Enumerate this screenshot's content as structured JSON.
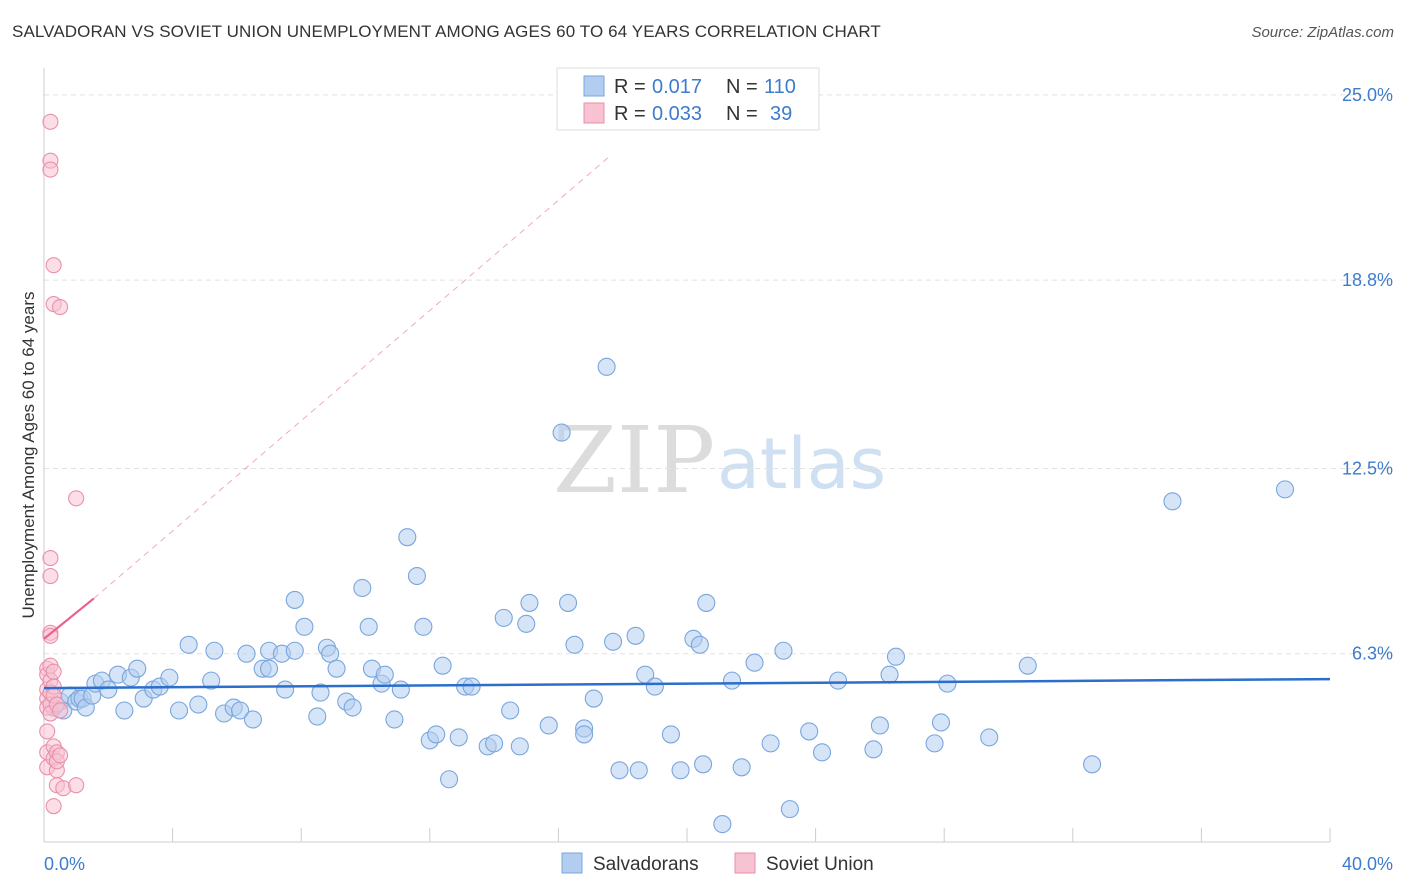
{
  "title": "SALVADORAN VS SOVIET UNION UNEMPLOYMENT AMONG AGES 60 TO 64 YEARS CORRELATION CHART",
  "source": "Source: ZipAtlas.com",
  "watermark": {
    "zip": "ZIP",
    "atlas": "atlas"
  },
  "colors": {
    "blue_fill": "#b3cdf0",
    "blue_stroke": "#7aa6dd",
    "blue_line": "#2b6fcb",
    "pink_fill": "#f7c2d2",
    "pink_stroke": "#ea8fac",
    "pink_line": "#e8628a",
    "grid": "#e2e2e2",
    "axis": "#cccccc",
    "tick_label": "#3d7ccc"
  },
  "legend": {
    "rows": [
      {
        "r_label": "R =",
        "r_value": "0.017",
        "n_label": "N =",
        "n_value": "110",
        "color": "blue"
      },
      {
        "r_label": "R =",
        "r_value": "0.033",
        "n_label": "N =",
        "n_value": "39",
        "color": "pink"
      }
    ]
  },
  "chart_data": {
    "type": "scatter",
    "title": "SALVADORAN VS SOVIET UNION UNEMPLOYMENT AMONG AGES 60 TO 64 YEARS CORRELATION CHART",
    "xlabel": "",
    "ylabel": "Unemployment Among Ages 60 to 64 years",
    "xlim": [
      0,
      40
    ],
    "ylim": [
      0,
      25.9
    ],
    "x_tick_labels": [
      {
        "value": 0,
        "label": "0.0%"
      },
      {
        "value": 40,
        "label": "40.0%"
      }
    ],
    "y_tick_labels": [
      {
        "value": 6.3,
        "label": "6.3%"
      },
      {
        "value": 12.5,
        "label": "12.5%"
      },
      {
        "value": 18.8,
        "label": "18.8%"
      },
      {
        "value": 25.0,
        "label": "25.0%"
      }
    ],
    "grid": true,
    "legend_position": "bottom-center",
    "series": [
      {
        "name": "Salvadorans",
        "color": "blue",
        "trend": {
          "x": [
            0,
            40
          ],
          "y": [
            5.15,
            5.45
          ]
        },
        "points": [
          [
            0.3,
            4.5
          ],
          [
            0.5,
            4.7
          ],
          [
            0.6,
            4.4
          ],
          [
            0.8,
            4.9
          ],
          [
            1.0,
            4.7
          ],
          [
            1.1,
            4.8
          ],
          [
            1.2,
            4.8
          ],
          [
            1.3,
            4.5
          ],
          [
            1.5,
            4.9
          ],
          [
            1.6,
            5.3
          ],
          [
            1.8,
            5.4
          ],
          [
            2.0,
            5.1
          ],
          [
            2.3,
            5.6
          ],
          [
            2.5,
            4.4
          ],
          [
            2.7,
            5.5
          ],
          [
            2.9,
            5.8
          ],
          [
            3.1,
            4.8
          ],
          [
            3.4,
            5.1
          ],
          [
            3.6,
            5.2
          ],
          [
            3.9,
            5.5
          ],
          [
            4.2,
            4.4
          ],
          [
            4.5,
            6.6
          ],
          [
            4.8,
            4.6
          ],
          [
            5.2,
            5.4
          ],
          [
            5.3,
            6.4
          ],
          [
            5.6,
            4.3
          ],
          [
            5.9,
            4.5
          ],
          [
            6.1,
            4.4
          ],
          [
            6.3,
            6.3
          ],
          [
            6.5,
            4.1
          ],
          [
            6.8,
            5.8
          ],
          [
            7.0,
            5.8
          ],
          [
            7.0,
            6.4
          ],
          [
            7.4,
            6.3
          ],
          [
            7.5,
            5.1
          ],
          [
            7.8,
            6.4
          ],
          [
            7.8,
            8.1
          ],
          [
            8.1,
            7.2
          ],
          [
            8.5,
            4.2
          ],
          [
            8.6,
            5.0
          ],
          [
            8.8,
            6.5
          ],
          [
            8.9,
            6.3
          ],
          [
            9.1,
            5.8
          ],
          [
            9.4,
            4.7
          ],
          [
            9.6,
            4.5
          ],
          [
            9.9,
            8.5
          ],
          [
            10.1,
            7.2
          ],
          [
            10.2,
            5.8
          ],
          [
            10.5,
            5.3
          ],
          [
            10.6,
            5.6
          ],
          [
            10.9,
            4.1
          ],
          [
            11.1,
            5.1
          ],
          [
            11.3,
            10.2
          ],
          [
            11.6,
            8.9
          ],
          [
            11.8,
            7.2
          ],
          [
            12.0,
            3.4
          ],
          [
            12.2,
            3.6
          ],
          [
            12.4,
            5.9
          ],
          [
            12.6,
            2.1
          ],
          [
            12.9,
            3.5
          ],
          [
            13.1,
            5.2
          ],
          [
            13.3,
            5.2
          ],
          [
            13.8,
            3.2
          ],
          [
            14.0,
            3.3
          ],
          [
            14.3,
            7.5
          ],
          [
            14.5,
            4.4
          ],
          [
            14.8,
            3.2
          ],
          [
            15.0,
            7.3
          ],
          [
            15.1,
            8.0
          ],
          [
            15.7,
            3.9
          ],
          [
            16.1,
            13.7
          ],
          [
            16.3,
            8.0
          ],
          [
            16.5,
            6.6
          ],
          [
            16.8,
            3.8
          ],
          [
            16.8,
            3.6
          ],
          [
            17.1,
            4.8
          ],
          [
            17.5,
            15.9
          ],
          [
            17.7,
            6.7
          ],
          [
            17.9,
            2.4
          ],
          [
            18.4,
            6.9
          ],
          [
            18.5,
            2.4
          ],
          [
            18.7,
            5.6
          ],
          [
            19.0,
            5.2
          ],
          [
            19.5,
            3.6
          ],
          [
            19.8,
            2.4
          ],
          [
            20.2,
            6.8
          ],
          [
            20.4,
            6.6
          ],
          [
            20.5,
            2.6
          ],
          [
            20.6,
            8.0
          ],
          [
            21.1,
            0.6
          ],
          [
            21.4,
            5.4
          ],
          [
            21.7,
            2.5
          ],
          [
            22.1,
            6.0
          ],
          [
            22.6,
            3.3
          ],
          [
            23.0,
            6.4
          ],
          [
            23.2,
            1.1
          ],
          [
            23.8,
            3.7
          ],
          [
            24.2,
            3.0
          ],
          [
            24.7,
            5.4
          ],
          [
            25.8,
            3.1
          ],
          [
            26.0,
            3.9
          ],
          [
            26.3,
            5.6
          ],
          [
            26.5,
            6.2
          ],
          [
            27.7,
            3.3
          ],
          [
            27.9,
            4.0
          ],
          [
            28.1,
            5.3
          ],
          [
            29.4,
            3.5
          ],
          [
            30.6,
            5.9
          ],
          [
            32.6,
            2.6
          ],
          [
            35.1,
            11.4
          ],
          [
            38.6,
            11.8
          ]
        ]
      },
      {
        "name": "Soviet Union",
        "color": "pink",
        "trend": {
          "x": [
            0,
            1.55
          ],
          "y": [
            6.8,
            8.15
          ],
          "dashed_extension": {
            "x": [
              1.55,
              17.6
            ],
            "y": [
              8.15,
              22.95
            ]
          }
        },
        "points": [
          [
            0.1,
            5.8
          ],
          [
            0.1,
            5.6
          ],
          [
            0.1,
            5.1
          ],
          [
            0.1,
            4.8
          ],
          [
            0.1,
            4.5
          ],
          [
            0.1,
            3.7
          ],
          [
            0.1,
            3.0
          ],
          [
            0.1,
            2.5
          ],
          [
            0.2,
            7.0
          ],
          [
            0.2,
            6.9
          ],
          [
            0.2,
            5.9
          ],
          [
            0.2,
            5.4
          ],
          [
            0.2,
            5.0
          ],
          [
            0.2,
            4.6
          ],
          [
            0.2,
            4.3
          ],
          [
            0.2,
            8.9
          ],
          [
            0.2,
            9.5
          ],
          [
            0.2,
            24.1
          ],
          [
            0.2,
            22.8
          ],
          [
            0.2,
            22.5
          ],
          [
            0.3,
            19.3
          ],
          [
            0.3,
            18.0
          ],
          [
            0.3,
            5.7
          ],
          [
            0.3,
            5.2
          ],
          [
            0.3,
            4.9
          ],
          [
            0.3,
            3.2
          ],
          [
            0.3,
            2.8
          ],
          [
            0.3,
            1.2
          ],
          [
            0.4,
            4.6
          ],
          [
            0.4,
            3.0
          ],
          [
            0.4,
            2.4
          ],
          [
            0.4,
            2.7
          ],
          [
            0.4,
            1.9
          ],
          [
            0.5,
            17.9
          ],
          [
            0.5,
            4.4
          ],
          [
            0.5,
            2.9
          ],
          [
            0.6,
            1.8
          ],
          [
            1.0,
            11.5
          ],
          [
            1.0,
            1.9
          ]
        ]
      }
    ]
  },
  "bottom_legend": {
    "items": [
      {
        "label": "Salvadorans",
        "color": "blue"
      },
      {
        "label": "Soviet Union",
        "color": "pink"
      }
    ]
  }
}
